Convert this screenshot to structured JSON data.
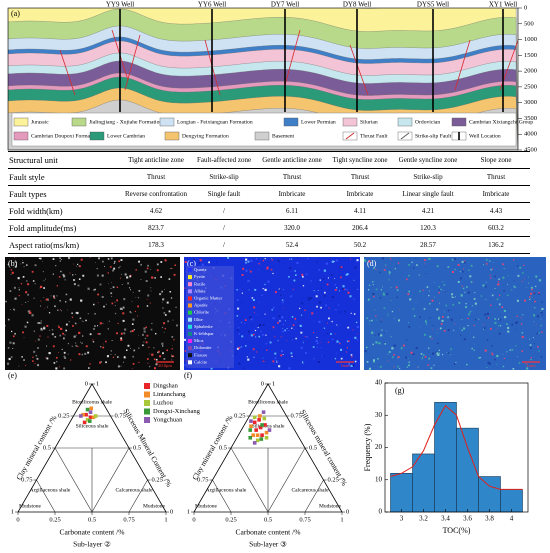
{
  "panel_a": {
    "label": "(a)",
    "wells": [
      "YY9 Well",
      "YY6 Well",
      "DY7 Well",
      "DY8 Well",
      "DYS5 Well",
      "XY1 Well"
    ],
    "depth_ticks": [
      0,
      500,
      1000,
      1500,
      2000,
      2500,
      3000,
      3500,
      4000,
      4500
    ],
    "legend": [
      {
        "name": "Jurassic",
        "color": "#fbf29a"
      },
      {
        "name": "Jialingjiang - Xujiahe Formation",
        "color": "#b8d98a"
      },
      {
        "name": "Longtan - Feixianguan Formation",
        "color": "#cfe2f3"
      },
      {
        "name": "Lower Permian",
        "color": "#3f7fc8"
      },
      {
        "name": "Silurian",
        "color": "#f2c4d6"
      },
      {
        "name": "Ordovician",
        "color": "#c6e7ee"
      },
      {
        "name": "Cambrian Xixiangchi Group",
        "color": "#7a5d98"
      },
      {
        "name": "Cambrian Doupoxi Formation",
        "color": "#e49abc"
      },
      {
        "name": "Lower Cambrian",
        "color": "#2a9a78"
      },
      {
        "name": "Dengying Formation",
        "color": "#f4c56e"
      },
      {
        "name": "Basement",
        "color": "#cfcfcf"
      },
      {
        "name": "Thrust Fault",
        "color": "#d9282f"
      },
      {
        "name": "Strike-slip Fault",
        "color": "#555555"
      },
      {
        "name": "Well Location",
        "color": "#000000"
      }
    ]
  },
  "table": {
    "header": [
      "Structural unit",
      "Tight anticline zone",
      "Fault-affected zone",
      "Gentle anticline zone",
      "Tight syncline zone",
      "Gentle syncline zone",
      "Slope zone"
    ],
    "rows": [
      [
        "Fault style",
        "Thrust",
        "Strike-slip",
        "Thrust",
        "Thrust",
        "Strike-slip",
        "Thrust"
      ],
      [
        "Fault types",
        "Reverse confrontation",
        "Single fault",
        "Imbricate",
        "Imbricate",
        "Linear single fault",
        "Imbricate"
      ],
      [
        "Fold width(km)",
        "4.62",
        "/",
        "6.11",
        "4.11",
        "4.21",
        "4.43"
      ],
      [
        "Fold amplitude(ms)",
        "823.7",
        "/",
        "320.0",
        "206.4",
        "120.3",
        "603.2"
      ],
      [
        "Aspect ratio(ms/km)",
        "178.3",
        "/",
        "52.4",
        "50.2",
        "28.57",
        "136.2"
      ]
    ]
  },
  "panel_b": {
    "label": "(b)",
    "scale": "20.0μm"
  },
  "panel_c": {
    "label": "(c)",
    "scale": "1mm",
    "minerals": [
      {
        "name": "Quartz",
        "color": "#2233ff"
      },
      {
        "name": "Pyrite",
        "color": "#ffee22"
      },
      {
        "name": "Rutile",
        "color": "#ff88cc"
      },
      {
        "name": "Albite",
        "color": "#aa88ff"
      },
      {
        "name": "Organic Matter",
        "color": "#ff2222"
      },
      {
        "name": "Apatite",
        "color": "#ff9922"
      },
      {
        "name": "Chlorite",
        "color": "#22cc44"
      },
      {
        "name": "Illite",
        "color": "#99ddff"
      },
      {
        "name": "Sphalerite",
        "color": "#22dddd"
      },
      {
        "name": "K-feldspar",
        "color": "#118888"
      },
      {
        "name": "Mica",
        "color": "#ee22ee"
      },
      {
        "name": "Dolomite",
        "color": "#8844aa"
      },
      {
        "name": "Fissure",
        "color": "#111111"
      },
      {
        "name": "Calcite",
        "color": "#ffffff"
      }
    ]
  },
  "panel_d": {
    "label": "(d)",
    "scale": "1mm"
  },
  "panel_e": {
    "label": "(e)",
    "sublayer": "Sub-layer ②",
    "bottom_label": "Carbonate content /%",
    "left_label": "Clay mineral content /%",
    "right_label": "Siliceous Mineral Content /%",
    "bottom_ticks": [
      0,
      0.25,
      0.5,
      0.75,
      1
    ],
    "left_ticks": [
      0,
      0.25,
      0.5,
      0.75,
      1
    ],
    "right_ticks": [
      0,
      0.25,
      0.5,
      0.75,
      1
    ],
    "regions": [
      "Biosiliceous shale",
      "Siliceous shale",
      "Argillaceous shale",
      "Calcareous shale",
      "Mudstone",
      "Mudstone"
    ],
    "series": [
      {
        "name": "Dingshan",
        "color": "#e8262a",
        "points": [
          [
            0.08,
            0.16
          ],
          [
            0.12,
            0.14
          ],
          [
            0.1,
            0.2
          ]
        ]
      },
      {
        "name": "Lintanchang",
        "color": "#f28c28",
        "points": [
          [
            0.06,
            0.18
          ],
          [
            0.14,
            0.12
          ],
          [
            0.09,
            0.1
          ]
        ]
      },
      {
        "name": "Luzhou",
        "color": "#a8c83a",
        "points": [
          [
            0.15,
            0.1
          ],
          [
            0.11,
            0.17
          ]
        ]
      },
      {
        "name": "Dongxi-Xinchang",
        "color": "#3a9a3a",
        "points": [
          [
            0.13,
            0.16
          ],
          [
            0.07,
            0.13
          ]
        ]
      },
      {
        "name": "Yongchuan",
        "color": "#8a5bb0",
        "points": [
          [
            0.05,
            0.2
          ],
          [
            0.1,
            0.12
          ]
        ]
      }
    ]
  },
  "panel_f": {
    "label": "(f)",
    "sublayer": "Sub-layer ③",
    "bottom_label": "Carbonate content /%",
    "left_label": "Clay mineral content /%",
    "right_label": "Siliceous mineral content /%",
    "bottom_ticks": [
      0,
      0.25,
      0.5,
      0.75,
      1
    ],
    "left_ticks": [
      0,
      0.25,
      0.5,
      0.75,
      1
    ],
    "right_ticks": [
      0,
      0.25,
      0.5,
      0.75,
      1
    ],
    "regions": [
      "Biosiliceous shale",
      "Siliceous shale",
      "Argillaceous shale",
      "Calcareous shale",
      "Mudstone",
      "Mudstone"
    ],
    "series": [
      {
        "color": "#e8262a",
        "points": [
          [
            0.08,
            0.2
          ],
          [
            0.12,
            0.22
          ],
          [
            0.1,
            0.26
          ],
          [
            0.06,
            0.24
          ],
          [
            0.14,
            0.18
          ],
          [
            0.16,
            0.24
          ]
        ]
      },
      {
        "color": "#f28c28",
        "points": [
          [
            0.05,
            0.28
          ],
          [
            0.1,
            0.3
          ],
          [
            0.13,
            0.27
          ],
          [
            0.18,
            0.2
          ],
          [
            0.07,
            0.18
          ]
        ]
      },
      {
        "color": "#a8c83a",
        "points": [
          [
            0.11,
            0.16
          ],
          [
            0.15,
            0.29
          ],
          [
            0.2,
            0.22
          ],
          [
            0.04,
            0.22
          ]
        ]
      },
      {
        "color": "#3a9a3a",
        "points": [
          [
            0.09,
            0.33
          ],
          [
            0.17,
            0.26
          ],
          [
            0.12,
            0.2
          ],
          [
            0.06,
            0.3
          ]
        ]
      },
      {
        "color": "#8a5bb0",
        "points": [
          [
            0.08,
            0.14
          ],
          [
            0.14,
            0.32
          ],
          [
            0.19,
            0.17
          ],
          [
            0.03,
            0.26
          ]
        ]
      }
    ]
  },
  "panel_g": {
    "label": "(g)",
    "type": "histogram",
    "x_label": "TOC(%)",
    "y_label": "Frequency (%)",
    "bins": [
      2.9,
      3.1,
      3.3,
      3.5,
      3.7,
      3.9,
      4.1
    ],
    "values": [
      12,
      18,
      34,
      26,
      11,
      7
    ],
    "color": "#2f86c8",
    "xlim": [
      2.85,
      4.15
    ],
    "ylim": [
      0,
      40
    ],
    "xticks": [
      3,
      3.2,
      3.4,
      3.6,
      3.8,
      4
    ],
    "yticks": [
      0,
      10,
      20,
      30,
      40
    ],
    "fit": {
      "color": "#e0201b",
      "x": [
        2.9,
        3.0,
        3.1,
        3.2,
        3.3,
        3.4,
        3.5,
        3.6,
        3.7,
        3.8,
        3.9,
        4.0,
        4.1
      ],
      "values": [
        11,
        12,
        14,
        19,
        27,
        33,
        30,
        20,
        11,
        8,
        7,
        7,
        7
      ]
    }
  }
}
